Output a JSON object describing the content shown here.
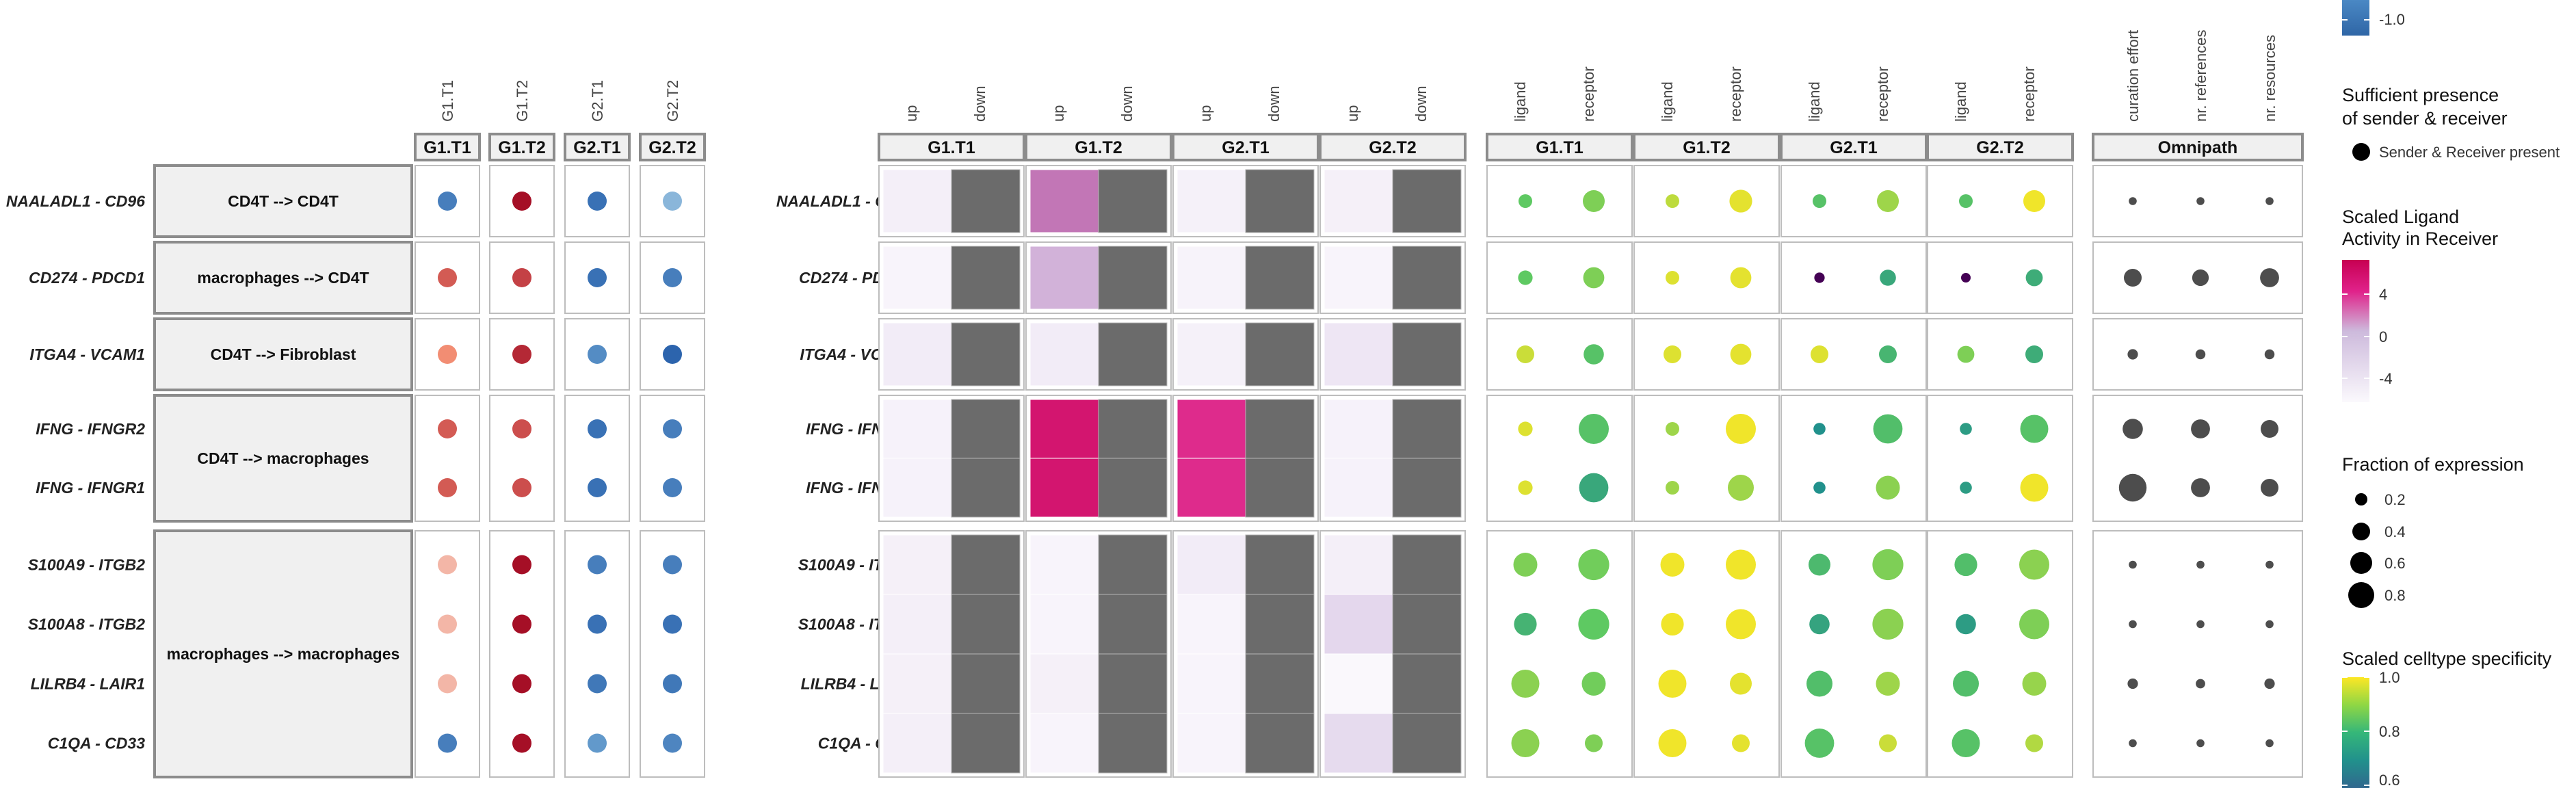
{
  "chart_data": {
    "type": "heatmap",
    "title": "",
    "rows": [
      {
        "pair": "NAALADL1 - CD96",
        "group": 0
      },
      {
        "pair": "CD274 - PDCD1",
        "group": 1
      },
      {
        "pair": "ITGA4 - VCAM1",
        "group": 2
      },
      {
        "pair": "IFNG - IFNGR2",
        "group": 3
      },
      {
        "pair": "IFNG - IFNGR1",
        "group": 3
      },
      {
        "pair": "S100A9 - ITGB2",
        "group": 4
      },
      {
        "pair": "S100A8 - ITGB2",
        "group": 4
      },
      {
        "pair": "LILRB4 - LAIR1",
        "group": 4
      },
      {
        "pair": "C1QA - CD33",
        "group": 4
      }
    ],
    "interactions": [
      "CD4T --> CD4T",
      "macrophages --> CD4T",
      "CD4T --> Fibroblast",
      "CD4T --> macrophages",
      "macrophages --> macrophages"
    ],
    "conditions": [
      "G1.T1",
      "G1.T2",
      "G2.T1",
      "G2.T2"
    ],
    "logfc_panel": {
      "columns": [
        "G1.T1",
        "G1.T2",
        "G2.T1",
        "G2.T2"
      ],
      "column_labels": [
        "G1.T1",
        "G1.T2",
        "G2.T1",
        "G2.T2"
      ],
      "values": [
        [
          -0.8,
          1.0,
          -0.9,
          -0.4
        ],
        [
          0.7,
          0.8,
          -0.9,
          -0.8
        ],
        [
          0.5,
          0.9,
          -0.7,
          -1.0
        ],
        [
          0.7,
          0.75,
          -0.9,
          -0.8
        ],
        [
          0.7,
          0.75,
          -0.9,
          -0.8
        ],
        [
          0.3,
          1.0,
          -0.8,
          -0.8
        ],
        [
          0.3,
          1.0,
          -0.9,
          -0.9
        ],
        [
          0.3,
          1.0,
          -0.85,
          -0.85
        ],
        [
          -0.8,
          1.0,
          -0.6,
          -0.75
        ]
      ]
    },
    "ligand_activity_panel": {
      "sub_columns": [
        "up",
        "down"
      ],
      "up_values": [
        [
          -3.5,
          2.0,
          -3.7,
          -3.6
        ],
        [
          -4.0,
          0.5,
          -3.9,
          -4.0
        ],
        [
          -3.3,
          -3.3,
          -3.7,
          -2.8
        ],
        [
          -3.8,
          3.8,
          3.2,
          -3.8
        ],
        [
          -3.8,
          3.8,
          3.2,
          -3.8
        ],
        [
          -3.6,
          -4.0,
          -3.3,
          -3.5
        ],
        [
          -3.5,
          -4.0,
          -4.0,
          -1.5
        ],
        [
          -3.6,
          -3.6,
          -4.0,
          -4.3
        ],
        [
          -3.5,
          -4.0,
          -4.0,
          -1.8
        ]
      ]
    },
    "expression_panel": {
      "sub_columns": [
        "ligand",
        "receptor"
      ],
      "ligand": [
        [
          [
            0.75,
            0.2
          ],
          [
            0.9,
            0.2
          ],
          [
            0.72,
            0.2
          ],
          [
            0.72,
            0.2
          ]
        ],
        [
          [
            0.75,
            0.22
          ],
          [
            0.95,
            0.2
          ],
          [
            0.0,
            0.12
          ],
          [
            0.0,
            0.1
          ]
        ],
        [
          [
            0.92,
            0.3
          ],
          [
            0.95,
            0.3
          ],
          [
            0.95,
            0.3
          ],
          [
            0.8,
            0.28
          ]
        ],
        [
          [
            0.95,
            0.22
          ],
          [
            0.85,
            0.2
          ],
          [
            0.5,
            0.16
          ],
          [
            0.55,
            0.16
          ]
        ],
        [
          [
            0.95,
            0.22
          ],
          [
            0.85,
            0.2
          ],
          [
            0.5,
            0.16
          ],
          [
            0.55,
            0.16
          ]
        ],
        [
          [
            0.8,
            0.45
          ],
          [
            0.98,
            0.45
          ],
          [
            0.68,
            0.4
          ],
          [
            0.7,
            0.42
          ]
        ],
        [
          [
            0.65,
            0.42
          ],
          [
            0.98,
            0.42
          ],
          [
            0.58,
            0.36
          ],
          [
            0.55,
            0.36
          ]
        ],
        [
          [
            0.82,
            0.55
          ],
          [
            0.98,
            0.55
          ],
          [
            0.7,
            0.5
          ],
          [
            0.7,
            0.5
          ]
        ],
        [
          [
            0.82,
            0.55
          ],
          [
            0.98,
            0.55
          ],
          [
            0.72,
            0.58
          ],
          [
            0.72,
            0.55
          ]
        ]
      ],
      "receptor": [
        [
          [
            0.8,
            0.4
          ],
          [
            0.96,
            0.42
          ],
          [
            0.85,
            0.4
          ],
          [
            0.98,
            0.4
          ]
        ],
        [
          [
            0.8,
            0.38
          ],
          [
            0.96,
            0.38
          ],
          [
            0.6,
            0.26
          ],
          [
            0.62,
            0.28
          ]
        ],
        [
          [
            0.72,
            0.36
          ],
          [
            0.96,
            0.38
          ],
          [
            0.66,
            0.3
          ],
          [
            0.62,
            0.3
          ]
        ],
        [
          [
            0.72,
            0.6
          ],
          [
            0.98,
            0.6
          ],
          [
            0.7,
            0.58
          ],
          [
            0.72,
            0.55
          ]
        ],
        [
          [
            0.6,
            0.58
          ],
          [
            0.85,
            0.5
          ],
          [
            0.82,
            0.45
          ],
          [
            0.98,
            0.55
          ]
        ],
        [
          [
            0.78,
            0.62
          ],
          [
            0.98,
            0.6
          ],
          [
            0.8,
            0.62
          ],
          [
            0.82,
            0.6
          ]
        ],
        [
          [
            0.75,
            0.62
          ],
          [
            0.98,
            0.6
          ],
          [
            0.82,
            0.62
          ],
          [
            0.8,
            0.6
          ]
        ],
        [
          [
            0.78,
            0.45
          ],
          [
            0.96,
            0.4
          ],
          [
            0.85,
            0.45
          ],
          [
            0.84,
            0.45
          ]
        ],
        [
          [
            0.8,
            0.3
          ],
          [
            0.96,
            0.3
          ],
          [
            0.92,
            0.3
          ],
          [
            0.88,
            0.3
          ]
        ]
      ]
    },
    "omnipath_panel": {
      "header": "Omnipath",
      "columns": [
        "curation effort",
        "nr. references",
        "nr. resources"
      ],
      "values": [
        [
          0.1,
          0.1,
          0.1
        ],
        [
          0.5,
          0.45,
          0.55
        ],
        [
          0.2,
          0.18,
          0.18
        ],
        [
          0.6,
          0.55,
          0.5
        ],
        [
          0.9,
          0.55,
          0.5
        ],
        [
          0.1,
          0.1,
          0.1
        ],
        [
          0.1,
          0.1,
          0.1
        ],
        [
          0.2,
          0.16,
          0.2
        ],
        [
          0.1,
          0.1,
          0.1
        ]
      ]
    },
    "legends": {
      "top_colorbar_label": "-1.0",
      "presence_title_line1": "Sufficient presence",
      "presence_title_line2": "of sender & receiver",
      "presence_key": "Sender & Receiver present",
      "activity_title_line1": "Scaled Ligand",
      "activity_title_line2": "Activity in Receiver",
      "activity_ticks": [
        "4",
        "0",
        "-4"
      ],
      "fraction_title": "Fraction of expression",
      "fraction_values": [
        "0.2",
        "0.4",
        "0.6",
        "0.8"
      ],
      "specificity_title": "Scaled celltype specificity",
      "specificity_ticks": [
        "1.0",
        "0.8",
        "0.6"
      ]
    },
    "colors": {
      "cell_bg": "#ffffff",
      "cell_border": "#bdbdbd",
      "header_bg": "#f0f0f0",
      "header_border": "#8c8c8c",
      "down_fill": "#6b6b6b",
      "omnipath_dot": "#4d4d4d"
    }
  }
}
